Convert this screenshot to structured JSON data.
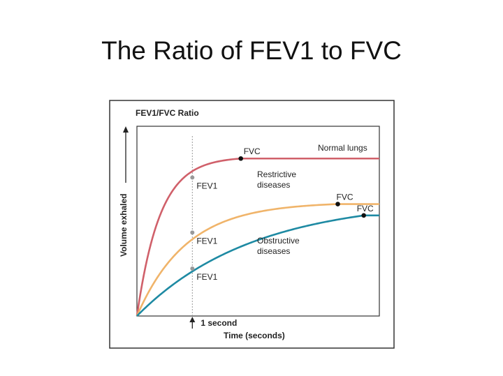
{
  "slide": {
    "title": "The Ratio of FEV1 to FVC"
  },
  "chart_data": {
    "type": "line",
    "title": "FEV1/FVC Ratio",
    "xlabel": "Time (seconds)",
    "ylabel": "Volume exhaled",
    "xlim": [
      0,
      7
    ],
    "ylim": [
      0,
      1
    ],
    "grid": false,
    "marker_x": 1.6,
    "marker_label": "1 second",
    "series": [
      {
        "name": "Normal lungs",
        "color": "#d0606a",
        "fvc": 0.83,
        "fev1": 0.73,
        "fvc_x": 3.0,
        "fev1_label": "FEV1",
        "fvc_label": "FVC",
        "rate": 1.5,
        "name_lines": [
          "Normal lungs"
        ]
      },
      {
        "name": "Restrictive diseases",
        "color": "#f0b46a",
        "fev1": 0.44,
        "fvc": 0.59,
        "fvc_x": 5.8,
        "fev1_label": "FEV1",
        "fvc_label": "FVC",
        "rate": 0.7,
        "name_lines": [
          "Restrictive",
          "diseases"
        ]
      },
      {
        "name": "Obstructive diseases",
        "color": "#1e8aa3",
        "fev1": 0.25,
        "fvc": 0.53,
        "fvc_x": 6.55,
        "fev1_label": "FEV1",
        "fvc_label": "FVC",
        "rate": 0.3,
        "name_lines": [
          "Obstructive",
          "diseases"
        ]
      }
    ]
  }
}
